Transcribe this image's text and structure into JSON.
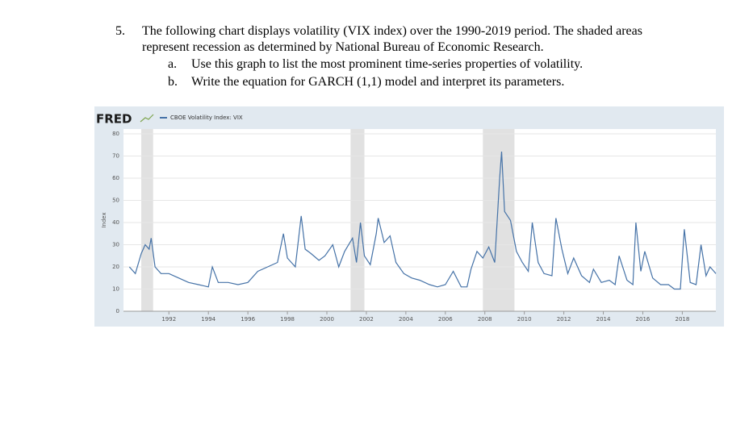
{
  "question": {
    "number": "5.",
    "text": [
      "The following chart displays volatility (VIX index) over the 1990-2019 period. The shaded areas",
      "represent recession as determined by National Bureau of Economic Research."
    ],
    "items": [
      {
        "label": "a.",
        "text": "Use this graph to list the most prominent time-series properties of volatility."
      },
      {
        "label": "b.",
        "text": "Write the equation for GARCH (1,1) model and interpret its parameters."
      }
    ]
  },
  "chart_data": {
    "type": "line",
    "logo": "FRED",
    "ylabel": "Index",
    "series": [
      {
        "name": "CBOE Volatility Index: VIX",
        "color": "#4572a7",
        "x": [
          1990.0,
          1990.3,
          1990.6,
          1990.8,
          1991.0,
          1991.1,
          1991.3,
          1991.6,
          1992.0,
          1992.5,
          1993.0,
          1993.5,
          1994.0,
          1994.2,
          1994.5,
          1995.0,
          1995.5,
          1996.0,
          1996.5,
          1997.0,
          1997.5,
          1997.8,
          1998.0,
          1998.4,
          1998.7,
          1998.9,
          1999.2,
          1999.6,
          1999.9,
          2000.3,
          2000.6,
          2000.9,
          2001.3,
          2001.5,
          2001.7,
          2001.9,
          2002.2,
          2002.5,
          2002.6,
          2002.9,
          2003.2,
          2003.5,
          2003.9,
          2004.3,
          2004.7,
          2005.2,
          2005.6,
          2006.0,
          2006.4,
          2006.8,
          2007.1,
          2007.3,
          2007.6,
          2007.9,
          2008.2,
          2008.5,
          2008.75,
          2008.85,
          2009.0,
          2009.3,
          2009.6,
          2009.9,
          2010.2,
          2010.4,
          2010.7,
          2011.0,
          2011.4,
          2011.6,
          2011.9,
          2012.2,
          2012.5,
          2012.9,
          2013.3,
          2013.5,
          2013.9,
          2014.3,
          2014.6,
          2014.8,
          2015.2,
          2015.5,
          2015.65,
          2015.9,
          2016.1,
          2016.5,
          2016.9,
          2017.3,
          2017.6,
          2017.9,
          2018.1,
          2018.4,
          2018.7,
          2018.95,
          2019.2,
          2019.4,
          2019.6,
          2019.7
        ],
        "values": [
          20,
          17,
          26,
          30,
          28,
          33,
          20,
          17,
          17,
          15,
          13,
          12,
          11,
          20,
          13,
          13,
          12,
          13,
          18,
          20,
          22,
          35,
          24,
          20,
          43,
          28,
          26,
          23,
          25,
          30,
          20,
          27,
          33,
          22,
          40,
          25,
          21,
          35,
          42,
          31,
          34,
          22,
          17,
          15,
          14,
          12,
          11,
          12,
          18,
          11,
          11,
          19,
          27,
          24,
          29,
          22,
          60,
          72,
          45,
          41,
          27,
          22,
          18,
          40,
          22,
          17,
          16,
          42,
          28,
          17,
          24,
          16,
          13,
          19,
          13,
          14,
          12,
          25,
          14,
          12,
          40,
          18,
          27,
          15,
          12,
          12,
          10,
          10,
          37,
          13,
          12,
          30,
          16,
          20,
          18,
          17
        ]
      }
    ],
    "recessions": [
      [
        1990.6,
        1991.2
      ],
      [
        2001.2,
        2001.9
      ],
      [
        2007.9,
        2009.5
      ]
    ],
    "xlim": [
      1989.7,
      2019.7
    ],
    "xticks": [
      1992,
      1994,
      1996,
      1998,
      2000,
      2002,
      2004,
      2006,
      2008,
      2010,
      2012,
      2014,
      2016,
      2018
    ],
    "ylim": [
      0,
      80
    ],
    "yticks": [
      0,
      10,
      20,
      30,
      40,
      50,
      60,
      70,
      80
    ],
    "grid": true
  }
}
